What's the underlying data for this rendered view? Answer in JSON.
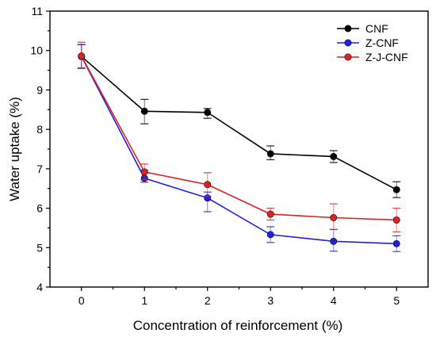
{
  "chart_data": {
    "type": "line",
    "xlabel": "Concentration of reinforcement (%)",
    "ylabel": "Water uptake (%)",
    "x": [
      0,
      1,
      2,
      3,
      4,
      5
    ],
    "xlim": [
      -0.5,
      5.5
    ],
    "ylim": [
      4,
      11
    ],
    "xticks": [
      "0",
      "1",
      "2",
      "3",
      "4",
      "5"
    ],
    "yticks": [
      "4",
      "5",
      "6",
      "7",
      "8",
      "9",
      "10",
      "11"
    ],
    "legend_position": "top-right",
    "grid": false,
    "series": [
      {
        "name": "CNF",
        "color": "#000000",
        "values": [
          9.85,
          8.46,
          8.43,
          7.38,
          7.31,
          6.47
        ],
        "err_upper": [
          0.3,
          0.3,
          0.1,
          0.2,
          0.15,
          0.2
        ],
        "err_lower": [
          0.3,
          0.32,
          0.15,
          0.15,
          0.15,
          0.2
        ]
      },
      {
        "name": "Z-CNF",
        "color": "#2222dd",
        "values": [
          9.85,
          6.76,
          6.26,
          5.33,
          5.16,
          5.1
        ],
        "err_upper": [
          0.3,
          0.2,
          0.15,
          0.2,
          0.3,
          0.2
        ],
        "err_lower": [
          0.3,
          0.1,
          0.35,
          0.2,
          0.25,
          0.2
        ]
      },
      {
        "name": "Z-J-CNF",
        "color": "#dd2222",
        "values": [
          9.86,
          6.92,
          6.6,
          5.85,
          5.76,
          5.7
        ],
        "err_upper": [
          0.35,
          0.2,
          0.3,
          0.15,
          0.35,
          0.3
        ],
        "err_lower": [
          0.3,
          0.2,
          0.3,
          0.15,
          0.3,
          0.3
        ]
      }
    ]
  }
}
